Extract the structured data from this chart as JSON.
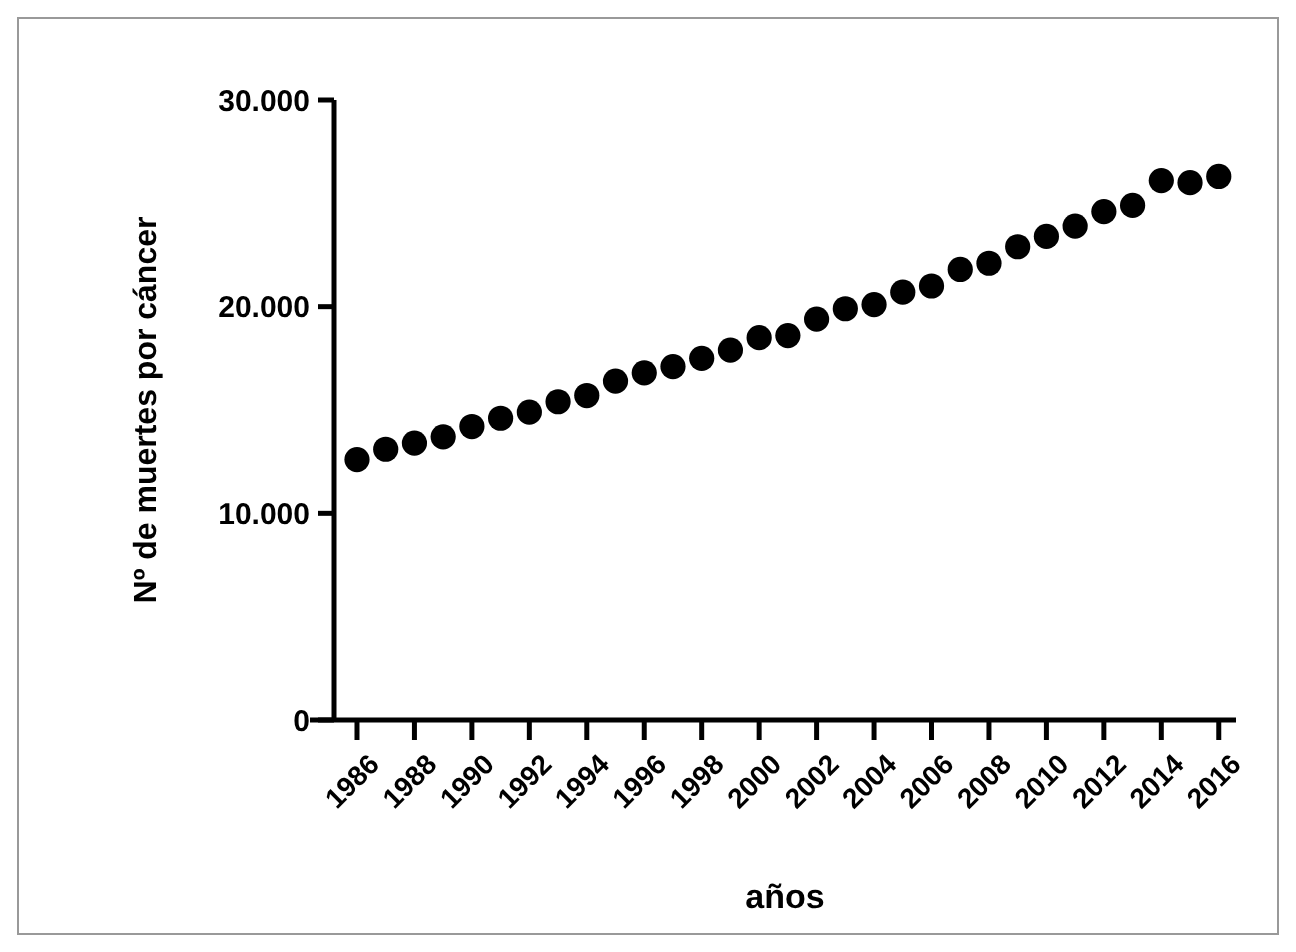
{
  "chart_data": {
    "type": "scatter",
    "xlabel": "años",
    "ylabel": "Nº de muertes por cáncer",
    "x": [
      1986,
      1987,
      1988,
      1989,
      1990,
      1991,
      1992,
      1993,
      1994,
      1995,
      1996,
      1997,
      1998,
      1999,
      2000,
      2001,
      2002,
      2003,
      2004,
      2005,
      2006,
      2007,
      2008,
      2009,
      2010,
      2011,
      2012,
      2013,
      2014,
      2015,
      2016
    ],
    "series": [
      {
        "color": "#000000",
        "values": [
          12600,
          13100,
          13400,
          13700,
          14200,
          14600,
          14900,
          15400,
          15700,
          16400,
          16800,
          17100,
          17500,
          17900,
          18500,
          18600,
          19400,
          19900,
          20100,
          20700,
          21000,
          21800,
          22100,
          22900,
          23400,
          23900,
          24600,
          24900,
          26100,
          26000,
          26300
        ]
      }
    ],
    "xlim": [
      1985.2,
      2016.6
    ],
    "xticks": [
      1986,
      1988,
      1990,
      1992,
      1994,
      1996,
      1998,
      2000,
      2002,
      2004,
      2006,
      2008,
      2010,
      2012,
      2014,
      2016
    ],
    "ylim": [
      0,
      30000
    ],
    "yticks": [
      {
        "value": 0,
        "label": "0"
      },
      {
        "value": 10000,
        "label": "10.000"
      },
      {
        "value": 20000,
        "label": "20.000"
      },
      {
        "value": 30000,
        "label": "30.000"
      }
    ],
    "marker": "circle",
    "grid": false
  }
}
